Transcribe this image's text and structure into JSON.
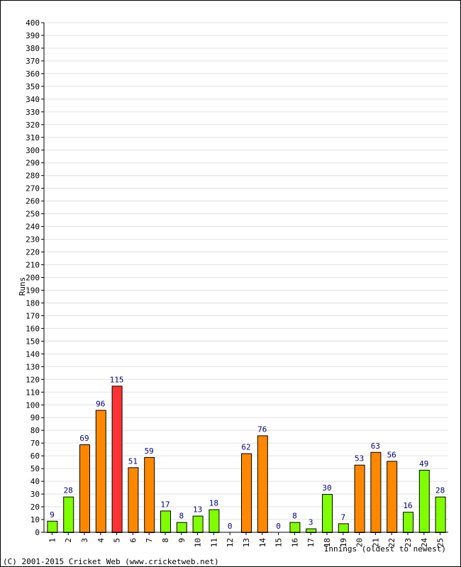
{
  "chart_data": {
    "type": "bar",
    "categories": [
      "1",
      "2",
      "3",
      "4",
      "5",
      "6",
      "7",
      "8",
      "9",
      "10",
      "11",
      "12",
      "13",
      "14",
      "15",
      "16",
      "17",
      "18",
      "19",
      "20",
      "21",
      "22",
      "23",
      "24",
      "25"
    ],
    "values": [
      9,
      28,
      69,
      96,
      115,
      51,
      59,
      17,
      8,
      13,
      18,
      0,
      62,
      76,
      0,
      8,
      3,
      30,
      7,
      53,
      63,
      56,
      16,
      49,
      28
    ],
    "xlabel": "Innings (oldest to newest)",
    "ylabel": "Runs",
    "ylim": [
      0,
      400
    ],
    "ytick_step": 10,
    "grid": true,
    "colors": {
      "under_50": "#80ff00",
      "fifty": "#ff8800",
      "hundred": "#ff3333",
      "bar_border": "#000000",
      "grid": "#e0e0e0",
      "data_label": "#000080"
    }
  },
  "footer": {
    "copyright": "(C) 2001-2015 Cricket Web (www.cricketweb.net)"
  }
}
